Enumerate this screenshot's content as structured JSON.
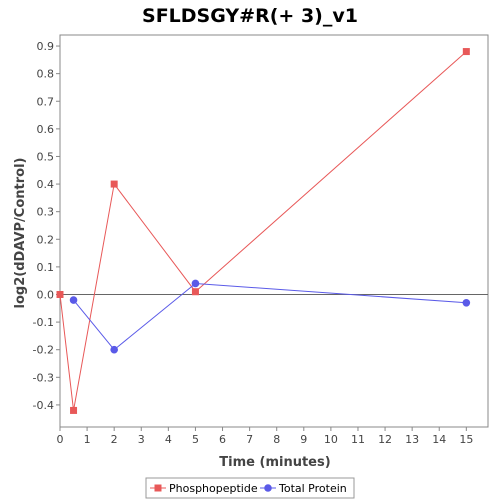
{
  "chart_data": {
    "type": "line",
    "title": "SFLDSGY#R(+ 3)_v1",
    "xlabel": "Time (minutes)",
    "ylabel": "log2(dDAVP/Control)",
    "xlim": [
      0,
      15.8
    ],
    "ylim": [
      -0.48,
      0.94
    ],
    "xticks": [
      0,
      1,
      2,
      3,
      4,
      5,
      6,
      7,
      8,
      9,
      10,
      11,
      12,
      13,
      14,
      15
    ],
    "yticks": [
      -0.4,
      -0.3,
      -0.2,
      -0.1,
      0.0,
      0.1,
      0.2,
      0.3,
      0.4,
      0.5,
      0.6,
      0.7,
      0.8,
      0.9
    ],
    "xtick_labels": [
      "0",
      "1",
      "2",
      "3",
      "4",
      "5",
      "6",
      "7",
      "8",
      "9",
      "10",
      "11",
      "12",
      "13",
      "14",
      "15"
    ],
    "ytick_labels": [
      "-0.4",
      "-0.3",
      "-0.2",
      "-0.1",
      "0.0",
      "0.1",
      "0.2",
      "0.3",
      "0.4",
      "0.5",
      "0.6",
      "0.7",
      "0.8",
      "0.9"
    ],
    "zero_line": true,
    "grid": false,
    "legend_position": "bottom",
    "series": [
      {
        "name": "Phosphopeptide",
        "color": "#e85858",
        "marker": "square",
        "x": [
          0,
          0.5,
          2,
          5,
          15
        ],
        "y": [
          0.0,
          -0.42,
          0.4,
          0.01,
          0.88
        ]
      },
      {
        "name": "Total Protein",
        "color": "#5a5ae8",
        "marker": "circle",
        "x": [
          0.5,
          2,
          5,
          15
        ],
        "y": [
          -0.02,
          -0.2,
          0.04,
          -0.03
        ]
      }
    ]
  }
}
